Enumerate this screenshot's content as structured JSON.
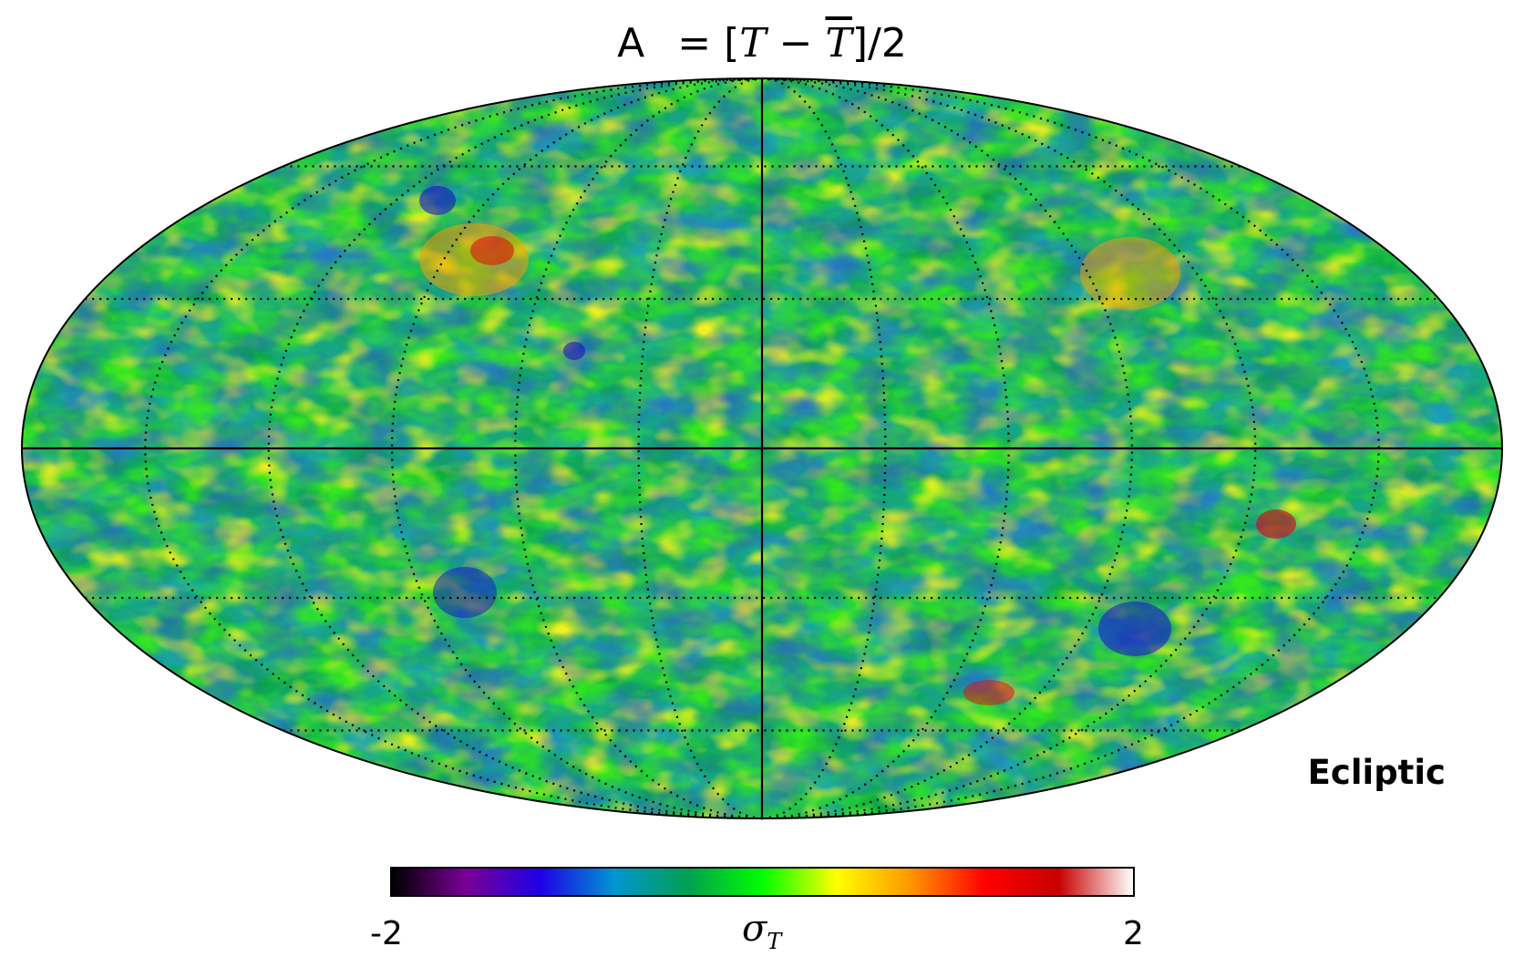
{
  "title": {
    "prefix": "A",
    "equation_lead": "= [",
    "var": "T",
    "minus": " − ",
    "var_bar": "T",
    "equation_tail": "]/2"
  },
  "map": {
    "projection": "mollweide",
    "grid": "dotted graticule, 30° spacing",
    "coordinate_label": "Ecliptic",
    "colormap": [
      "#000000",
      "#7a0096",
      "#1e00e6",
      "#0096d2",
      "#00a050",
      "#00ff00",
      "#ffff00",
      "#ff9600",
      "#ff0000",
      "#c80000",
      "#ffffff"
    ]
  },
  "colorbar": {
    "min_label": "-2",
    "max_label": "2",
    "label_symbol": "σ",
    "label_sub": "T"
  }
}
